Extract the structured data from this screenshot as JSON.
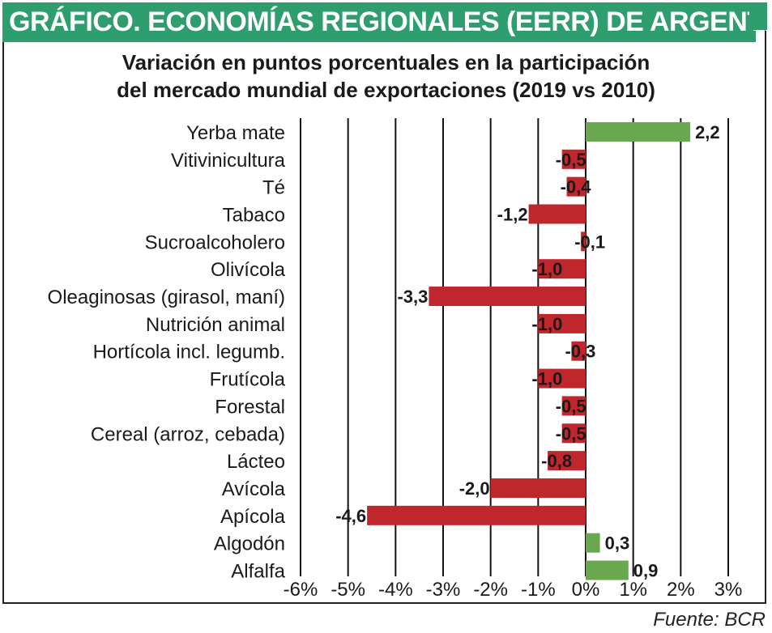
{
  "header": {
    "title": "GRÁFICO. ECONOMÍAS REGIONALES (EERR) DE ARGENTINA",
    "subtitle_line1": "Variación en puntos porcentuales en la participación",
    "subtitle_line2": "del mercado mundial de exportaciones (2019 vs 2010)",
    "source": "Fuente: BCR"
  },
  "colors": {
    "header_bg": "#2e9e6e",
    "positive": "#6aa84f",
    "negative": "#c0272d"
  },
  "chart_data": {
    "type": "bar",
    "orientation": "horizontal",
    "title": "Variación en puntos porcentuales en la participación del mercado mundial de exportaciones (2019 vs 2010)",
    "xlabel": "",
    "ylabel": "",
    "xlim": [
      -6,
      3
    ],
    "xticks": [
      -6,
      -5,
      -4,
      -3,
      -2,
      -1,
      0,
      1,
      2,
      3
    ],
    "xtick_labels": [
      "-6%",
      "-5%",
      "-4%",
      "-3%",
      "-2%",
      "-1%",
      "0%",
      "1%",
      "2%",
      "3%"
    ],
    "grid": "vertical",
    "categories": [
      "Yerba mate",
      "Vitivinicultura",
      "Té",
      "Tabaco",
      "Sucroalcoholero",
      "Olivícola",
      "Oleaginosas (girasol, maní)",
      "Nutrición animal",
      "Hortícola incl. legumb.",
      "Frutícola",
      "Forestal",
      "Cereal (arroz, cebada)",
      "Lácteo",
      "Avícola",
      "Apícola",
      "Algodón",
      "Alfalfa"
    ],
    "values": [
      2.2,
      -0.5,
      -0.4,
      -1.2,
      -0.1,
      -1.0,
      -3.3,
      -1.0,
      -0.3,
      -1.0,
      -0.5,
      -0.5,
      -0.8,
      -2.0,
      -4.6,
      0.3,
      0.9
    ],
    "value_labels": [
      "2,2",
      "-0,5",
      "-0,4",
      "-1,2",
      "-0,1",
      "-1,0",
      "-3,3",
      "-1,0",
      "-0,3",
      "-1,0",
      "-0,5",
      "-0,5",
      "-0,8",
      "-2,0",
      "-4,6",
      "0,3",
      "0,9"
    ]
  }
}
